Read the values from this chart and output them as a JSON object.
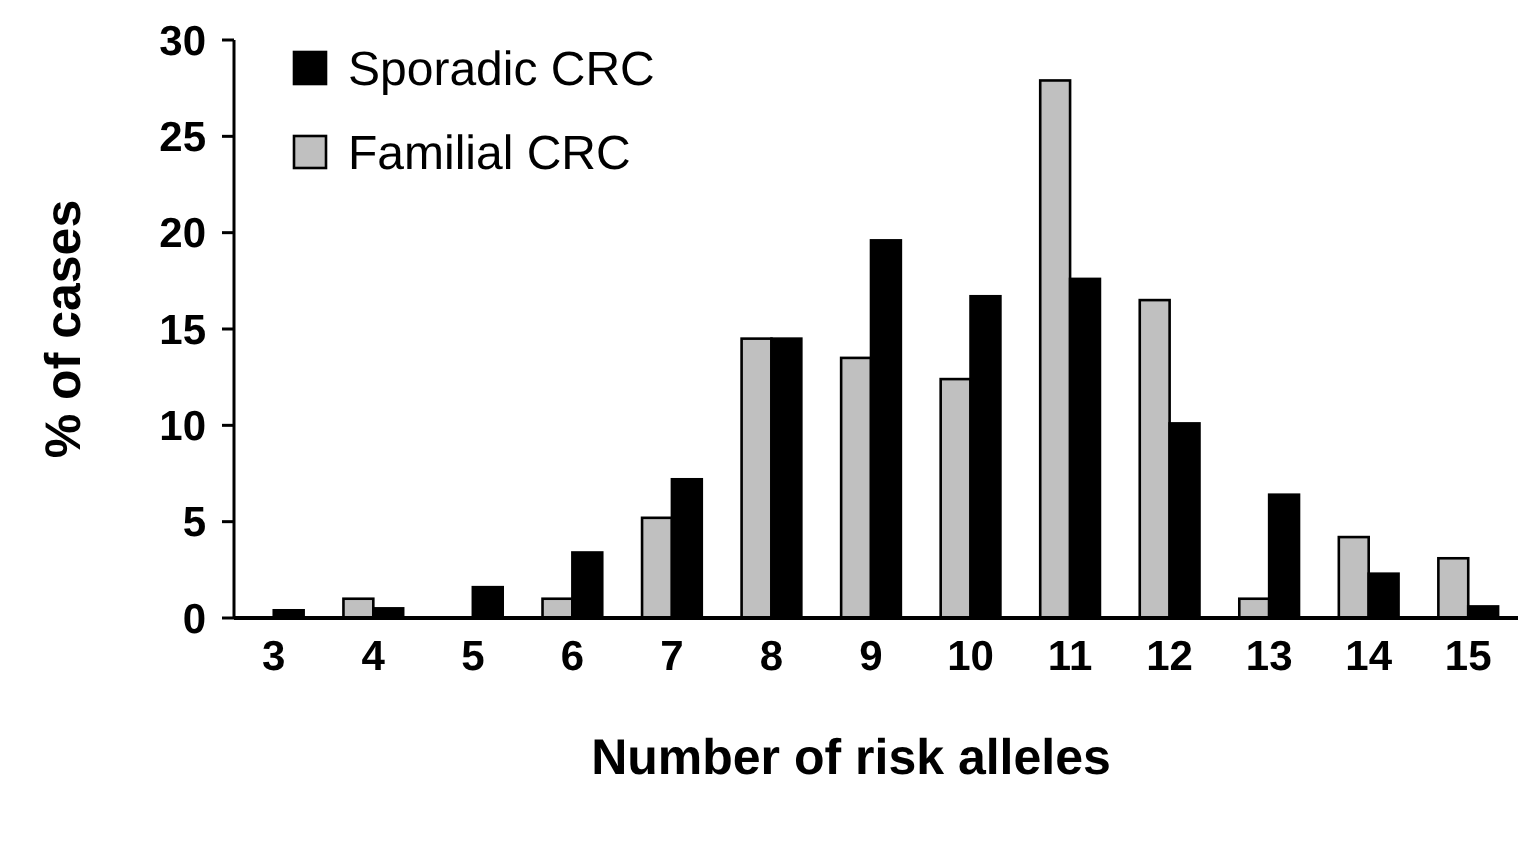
{
  "chart_data": {
    "type": "bar",
    "xlabel": "Number of risk alleles",
    "ylabel": "% of cases",
    "categories": [
      "3",
      "4",
      "5",
      "6",
      "7",
      "8",
      "9",
      "10",
      "11",
      "12",
      "13",
      "14",
      "15"
    ],
    "series": [
      {
        "name": "Familial CRC",
        "color": "#c0c0c0",
        "values": [
          0,
          1.0,
          0,
          1.0,
          5.2,
          14.5,
          13.5,
          12.4,
          27.9,
          16.5,
          1.0,
          4.2,
          3.1
        ]
      },
      {
        "name": "Sporadic CRC",
        "color": "#000000",
        "values": [
          0.4,
          0.5,
          1.6,
          3.4,
          7.2,
          14.5,
          19.6,
          16.7,
          17.6,
          10.1,
          6.4,
          2.3,
          0.6
        ]
      }
    ],
    "ylim": [
      0,
      30
    ],
    "yticks": [
      0,
      5,
      10,
      15,
      20,
      25,
      30
    ],
    "grid": false,
    "legend": "top left"
  }
}
